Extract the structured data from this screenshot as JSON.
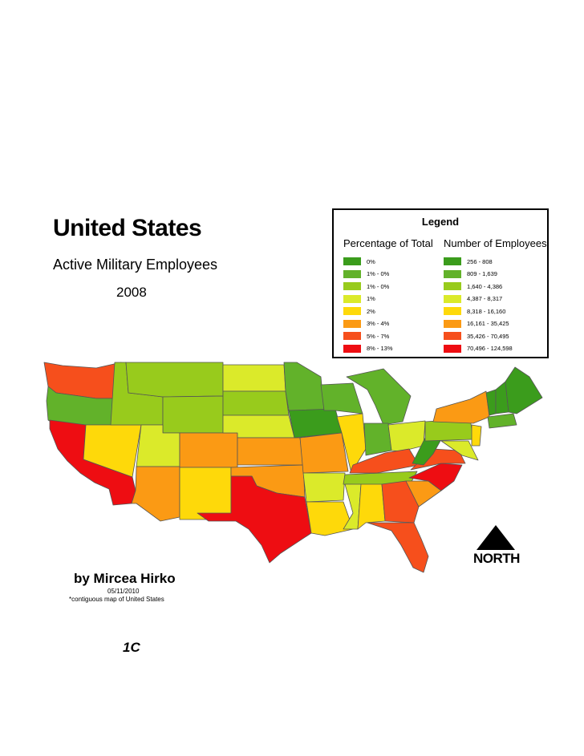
{
  "title": "United States",
  "subtitle": "Active Military Employees",
  "year": "2008",
  "legend": {
    "title": "Legend",
    "pct_heading": "Percentage of Total",
    "num_heading": "Number of Employees",
    "colors": [
      "#3b9c1c",
      "#62b22a",
      "#98cb1c",
      "#dbea2a",
      "#fed90a",
      "#fb9a14",
      "#f64f1c",
      "#ee0d12"
    ],
    "pct_classes": [
      "0%",
      "1% - 0%",
      "1% - 0%",
      "1%",
      "2%",
      "3% - 4%",
      "5% - 7%",
      "8% - 13%"
    ],
    "num_classes": [
      "256 - 808",
      "809 - 1,639",
      "1,640 - 4,386",
      "4,387 - 8,317",
      "8,318 - 16,160",
      "16,161 - 35,425",
      "35,426 - 70,495",
      "70,496 - 124,598"
    ]
  },
  "author": "by Mircea Hirko",
  "date": "05/11/2010",
  "note": "*contiguous map of United States",
  "north_label": "NORTH",
  "page_label": "1C",
  "map_class_colors": {
    "WA": "#f64f1c",
    "OR": "#62b22a",
    "CA": "#ee0d12",
    "NV": "#fed90a",
    "ID": "#98cb1c",
    "MT": "#98cb1c",
    "WY": "#98cb1c",
    "UT": "#dbea2a",
    "AZ": "#fb9a14",
    "CO": "#fb9a14",
    "NM": "#fed90a",
    "ND": "#dbea2a",
    "SD": "#98cb1c",
    "NE": "#dbea2a",
    "KS": "#fb9a14",
    "OK": "#fb9a14",
    "TX": "#ee0d12",
    "MN": "#62b22a",
    "IA": "#3b9c1c",
    "MO": "#fb9a14",
    "AR": "#dbea2a",
    "LA": "#fed90a",
    "WI": "#62b22a",
    "IL": "#fed90a",
    "MI": "#62b22a",
    "IN": "#62b22a",
    "OH": "#dbea2a",
    "KY": "#f64f1c",
    "TN": "#98cb1c",
    "MS": "#dbea2a",
    "AL": "#fed90a",
    "GA": "#f64f1c",
    "FL": "#f64f1c",
    "SC": "#fb9a14",
    "NC": "#ee0d12",
    "VA": "#f64f1c",
    "WV": "#3b9c1c",
    "PA": "#98cb1c",
    "NY": "#fb9a14",
    "ME": "#3b9c1c",
    "NH": "#3b9c1c",
    "VT": "#3b9c1c",
    "NJ": "#fed90a",
    "MD": "#dbea2a"
  }
}
